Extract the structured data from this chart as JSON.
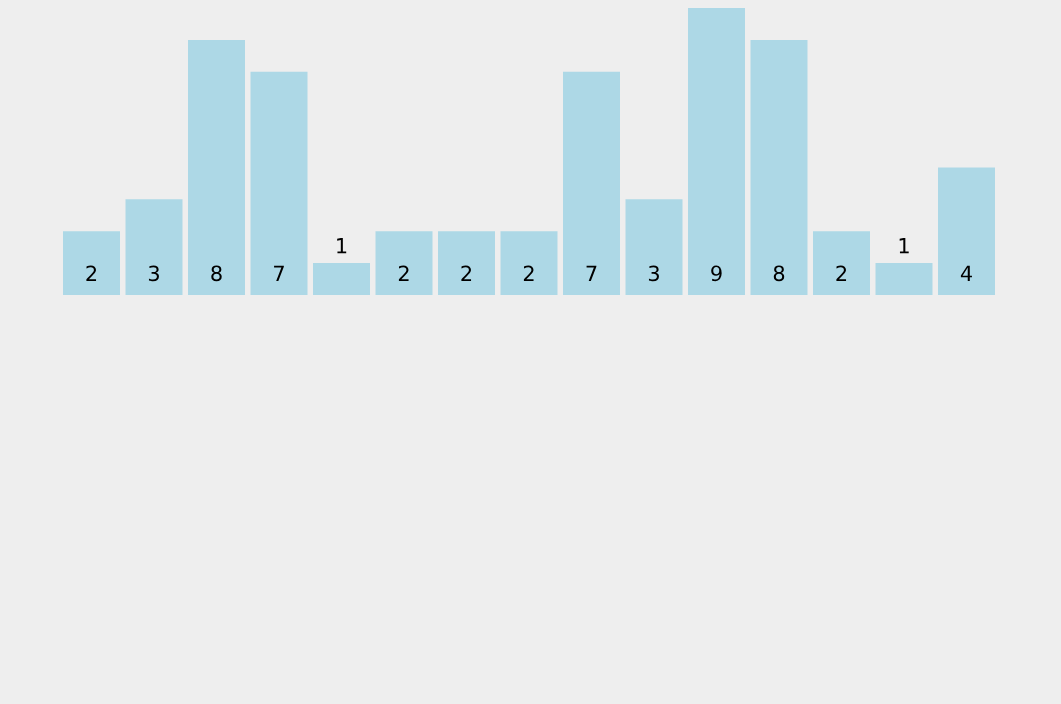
{
  "chart_data": {
    "type": "bar",
    "categories": [
      null,
      null,
      null,
      null,
      null,
      null,
      null,
      null,
      null,
      null,
      null,
      null,
      null,
      null,
      null
    ],
    "values": [
      2,
      3,
      8,
      7,
      1,
      2,
      2,
      2,
      7,
      3,
      9,
      8,
      2,
      1,
      4
    ],
    "color": "#add8e6",
    "data_labels": true
  }
}
